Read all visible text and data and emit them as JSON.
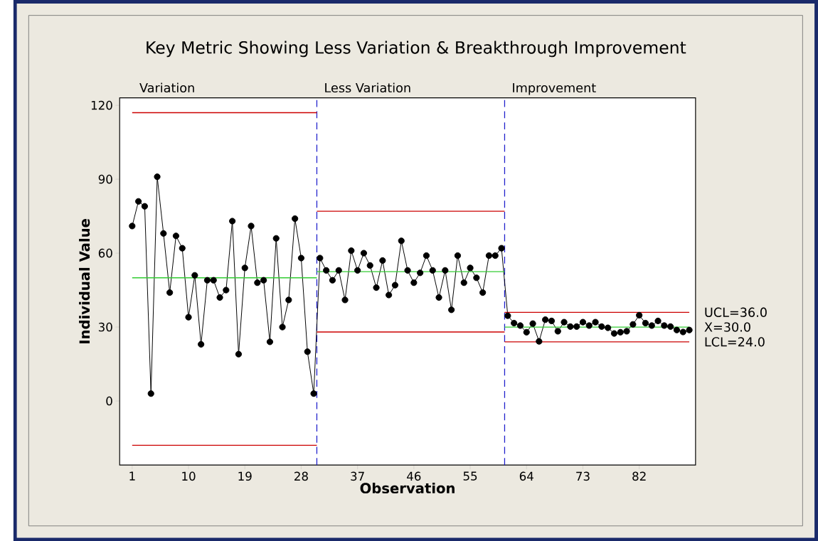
{
  "chart_data": {
    "type": "line",
    "title": "Key Metric Showing Less Variation & Breakthrough Improvement",
    "xlabel": "Observation",
    "ylabel": "Individual Value",
    "x": [
      1,
      2,
      3,
      4,
      5,
      6,
      7,
      8,
      9,
      10,
      11,
      12,
      13,
      14,
      15,
      16,
      17,
      18,
      19,
      20,
      21,
      22,
      23,
      24,
      25,
      26,
      27,
      28,
      29,
      30,
      31,
      32,
      33,
      34,
      35,
      36,
      37,
      38,
      39,
      40,
      41,
      42,
      43,
      44,
      45,
      46,
      47,
      48,
      49,
      50,
      51,
      52,
      53,
      54,
      55,
      56,
      57,
      58,
      59,
      60,
      61,
      62,
      63,
      64,
      65,
      66,
      67,
      68,
      69,
      70,
      71,
      72,
      73,
      74,
      75,
      76,
      77,
      78,
      79,
      80,
      81,
      82,
      83,
      84,
      85,
      86,
      87,
      88,
      89,
      90
    ],
    "series": [
      {
        "color": "#000000",
        "marker": "circle",
        "values": [
          71,
          81,
          79,
          3,
          91,
          68,
          44,
          67,
          62,
          34,
          51,
          23,
          49,
          49,
          42,
          45,
          73,
          19,
          54,
          71,
          48,
          49,
          24,
          66,
          30,
          41,
          74,
          58,
          20,
          3,
          58,
          53,
          49,
          53,
          41,
          61,
          53,
          60,
          55,
          46,
          57,
          43,
          47,
          65,
          53,
          48,
          52,
          59,
          53,
          42,
          53,
          37,
          59,
          48,
          54,
          50,
          44,
          59,
          59,
          62,
          34.6,
          31.6,
          30.6,
          27.9,
          31.4,
          24.2,
          33,
          32.5,
          28.3,
          32,
          30.2,
          30.2,
          32,
          30.6,
          32,
          30.2,
          29.7,
          27.4,
          27.9,
          28.3,
          31.1,
          34.8,
          31.6,
          30.6,
          32.5,
          30.6,
          30.2,
          28.8,
          28,
          28.8
        ]
      },
      {
        "color": "#cc0000",
        "marker": "none",
        "x": [
          1,
          30.5
        ],
        "values": [
          117,
          117
        ]
      },
      {
        "color": "#33cc33",
        "marker": "none",
        "x": [
          1,
          30.5
        ],
        "values": [
          50,
          50
        ]
      },
      {
        "color": "#cc0000",
        "marker": "none",
        "x": [
          1,
          30.5
        ],
        "values": [
          -18,
          -18
        ]
      },
      {
        "color": "#cc0000",
        "marker": "none",
        "x": [
          30.5,
          60.5
        ],
        "values": [
          77,
          77
        ]
      },
      {
        "color": "#33cc33",
        "marker": "none",
        "x": [
          30.5,
          60.5
        ],
        "values": [
          52.5,
          52.5
        ]
      },
      {
        "color": "#cc0000",
        "marker": "none",
        "x": [
          30.5,
          60.5
        ],
        "values": [
          28,
          28
        ]
      },
      {
        "name": "UCL=36.0",
        "color": "#cc0000",
        "marker": "none",
        "x": [
          60.5,
          90
        ],
        "values": [
          36,
          36
        ]
      },
      {
        "name": "X=30.0",
        "color": "#33cc33",
        "marker": "none",
        "x": [
          60.5,
          90
        ],
        "values": [
          30,
          30
        ]
      },
      {
        "name": "LCL=24.0",
        "color": "#cc0000",
        "marker": "none",
        "x": [
          60.5,
          90
        ],
        "values": [
          24,
          24
        ]
      }
    ],
    "ref_lines": [
      {
        "axis": "x",
        "value": 30.5,
        "color": "#1f1fcc",
        "line_style": "dashed"
      },
      {
        "axis": "x",
        "value": 60.5,
        "color": "#1f1fcc",
        "line_style": "dashed"
      }
    ],
    "annotations": [
      "Variation",
      "Less Variation",
      "Improvement"
    ],
    "xlim": [
      -1,
      91
    ],
    "ylim": [
      -26,
      123
    ],
    "xticks": [
      1,
      10,
      19,
      28,
      37,
      46,
      55,
      64,
      73,
      82
    ],
    "yticks": [
      0,
      30,
      60,
      90,
      120
    ],
    "grid": false
  }
}
